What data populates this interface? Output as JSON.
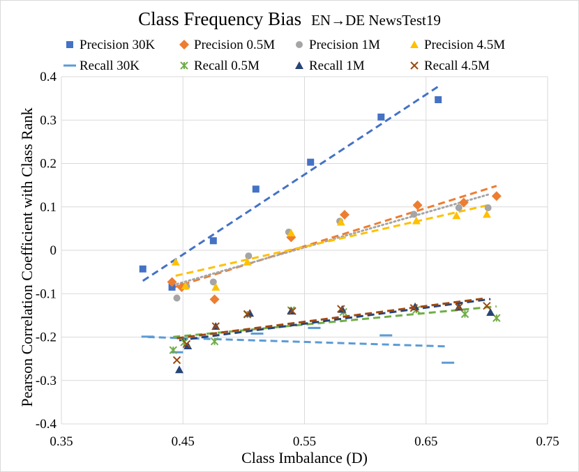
{
  "chart_data": {
    "type": "scatter",
    "title": "Class Frequency Bias",
    "subtitle": "EN→DE NewsTest19",
    "xlabel": "Class Imbalance (D)",
    "ylabel": "Pearson Correlation Coefficient with Class Rank",
    "xlim": [
      0.35,
      0.75
    ],
    "ylim": [
      -0.4,
      0.4
    ],
    "xticks": [
      "0.35",
      "0.45",
      "0.55",
      "0.65",
      "0.75"
    ],
    "yticks": [
      "0.4",
      "0.3",
      "0.2",
      "0.1",
      "0",
      "-0.1",
      "-0.2",
      "-0.3",
      "-0.4"
    ],
    "grid": true,
    "legend_position": "top",
    "series": [
      {
        "name": "Precision 30K",
        "marker": "square",
        "color": "#4472C4",
        "trend": "dashed",
        "x": [
          0.417,
          0.441,
          0.475,
          0.51,
          0.555,
          0.613,
          0.66
        ],
        "y": [
          -0.043,
          -0.085,
          0.022,
          0.141,
          0.203,
          0.307,
          0.347
        ]
      },
      {
        "name": "Precision 0.5M",
        "marker": "diamond",
        "color": "#ED7D31",
        "trend": "dashed",
        "x": [
          0.441,
          0.449,
          0.476,
          0.539,
          0.583,
          0.643,
          0.681,
          0.708
        ],
        "y": [
          -0.073,
          -0.085,
          -0.113,
          0.03,
          0.082,
          0.104,
          0.11,
          0.125
        ]
      },
      {
        "name": "Precision 1M",
        "marker": "circle",
        "color": "#A5A5A5",
        "trend": "dotted",
        "x": [
          0.445,
          0.453,
          0.475,
          0.504,
          0.537,
          0.579,
          0.64,
          0.677,
          0.701
        ],
        "y": [
          -0.11,
          -0.083,
          -0.073,
          -0.013,
          0.042,
          0.067,
          0.083,
          0.098,
          0.098
        ]
      },
      {
        "name": "Precision 4.5M",
        "marker": "triangle",
        "color": "#FFC000",
        "trend": "dashed",
        "x": [
          0.444,
          0.452,
          0.477,
          0.503,
          0.539,
          0.58,
          0.642,
          0.675,
          0.7
        ],
        "y": [
          -0.027,
          -0.082,
          -0.085,
          -0.027,
          0.04,
          0.065,
          0.068,
          0.08,
          0.083
        ]
      },
      {
        "name": "Recall 30K",
        "marker": "dash",
        "color": "#5B9BD5",
        "trend": "dashed",
        "x": [
          0.421,
          0.445,
          0.511,
          0.558,
          0.617,
          0.668
        ],
        "y": [
          -0.199,
          -0.235,
          -0.192,
          -0.179,
          -0.196,
          -0.259
        ]
      },
      {
        "name": "Recall 0.5M",
        "marker": "star",
        "color": "#70AD47",
        "trend": "dashed",
        "x": [
          0.442,
          0.451,
          0.476,
          0.503,
          0.539,
          0.582,
          0.642,
          0.682,
          0.708
        ],
        "y": [
          -0.23,
          -0.212,
          -0.21,
          -0.148,
          -0.138,
          -0.142,
          -0.137,
          -0.147,
          -0.156
        ]
      },
      {
        "name": "Recall 1M",
        "marker": "triangle",
        "color": "#264478",
        "trend": "dashed",
        "x": [
          0.447,
          0.454,
          0.477,
          0.505,
          0.539,
          0.581,
          0.641,
          0.677,
          0.703
        ],
        "y": [
          -0.275,
          -0.22,
          -0.175,
          -0.145,
          -0.14,
          -0.136,
          -0.13,
          -0.131,
          -0.143
        ]
      },
      {
        "name": "Recall 4.5M",
        "marker": "x",
        "color": "#9E480E",
        "trend": "dashed",
        "x": [
          0.445,
          0.453,
          0.477,
          0.503,
          0.54,
          0.58,
          0.64,
          0.677,
          0.7
        ],
        "y": [
          -0.253,
          -0.216,
          -0.175,
          -0.147,
          -0.14,
          -0.135,
          -0.133,
          -0.131,
          -0.128
        ]
      }
    ]
  }
}
